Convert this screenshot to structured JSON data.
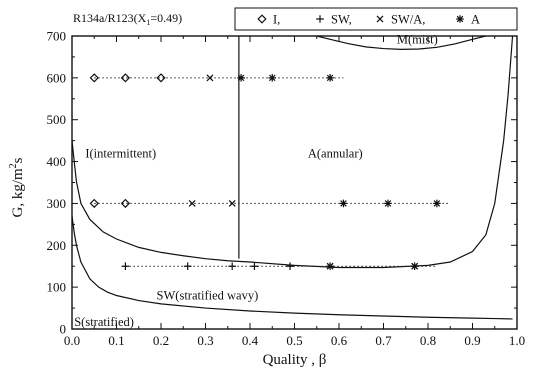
{
  "chart_data": {
    "type": "scatter",
    "header": "R134a/R123(X₁=0.49)",
    "xlabel": "Quality , β",
    "ylabel": "G, kg/m²s",
    "xlim": [
      0.0,
      1.0
    ],
    "ylim": [
      0,
      700
    ],
    "x_ticks": [
      "0.0",
      "0.1",
      "0.2",
      "0.3",
      "0.4",
      "0.5",
      "0.6",
      "0.7",
      "0.8",
      "0.9",
      "1.0"
    ],
    "y_ticks": [
      "0",
      "100",
      "200",
      "300",
      "400",
      "500",
      "600",
      "700"
    ],
    "grid": false,
    "legend_position": "top",
    "series": [
      {
        "name": "I,",
        "marker": "diamond",
        "x": [
          0.05,
          0.12,
          0.2,
          0.05,
          0.12
        ],
        "y": [
          600,
          600,
          600,
          300,
          300
        ]
      },
      {
        "name": "SW,",
        "marker": "plus",
        "x": [
          0.12,
          0.26,
          0.36,
          0.41,
          0.49
        ],
        "y": [
          150,
          150,
          150,
          150,
          150
        ]
      },
      {
        "name": "SW/A,",
        "marker": "cross",
        "x": [
          0.31,
          0.27,
          0.36,
          0.58,
          0.77
        ],
        "y": [
          600,
          300,
          300,
          150,
          150
        ]
      },
      {
        "name": "A",
        "marker": "asterisk",
        "x": [
          0.38,
          0.45,
          0.58,
          0.61,
          0.71,
          0.82,
          0.58,
          0.77
        ],
        "y": [
          600,
          600,
          600,
          300,
          300,
          300,
          150,
          150
        ]
      }
    ],
    "guide_lines": [
      {
        "y": 600,
        "x": [
          0.05,
          0.61
        ]
      },
      {
        "y": 300,
        "x": [
          0.05,
          0.85
        ]
      },
      {
        "y": 150,
        "x": [
          0.12,
          0.82
        ]
      }
    ],
    "boundaries": {
      "intermittent_annular": {
        "x": [
          0.375,
          0.375
        ],
        "y": [
          168,
          700
        ]
      },
      "stratified_wavy_upper": {
        "x": [
          0.0,
          0.005,
          0.01,
          0.02,
          0.04,
          0.07,
          0.1,
          0.15,
          0.2,
          0.25,
          0.3,
          0.35,
          0.4,
          0.5,
          0.6,
          0.7,
          0.8,
          0.85,
          0.9,
          0.93,
          0.95,
          0.97,
          0.98,
          0.99
        ],
        "y": [
          450,
          400,
          352,
          300,
          262,
          232,
          215,
          195,
          183,
          175,
          168,
          163,
          160,
          152,
          147,
          147,
          152,
          160,
          185,
          225,
          300,
          450,
          560,
          700
        ]
      },
      "stratified": {
        "x": [
          0.0,
          0.005,
          0.01,
          0.02,
          0.04,
          0.06,
          0.08,
          0.1,
          0.15,
          0.2,
          0.3,
          0.4,
          0.5,
          0.6,
          0.7,
          0.8,
          0.9,
          0.95,
          0.99
        ],
        "y": [
          270,
          230,
          200,
          160,
          120,
          100,
          88,
          80,
          68,
          60,
          50,
          43,
          38,
          34,
          31,
          28,
          26,
          25,
          24
        ]
      },
      "mist": {
        "x": [
          0.55,
          0.58,
          0.62,
          0.66,
          0.7,
          0.74,
          0.78,
          0.82,
          0.86,
          0.9,
          0.93
        ],
        "y": [
          700,
          692,
          682,
          674,
          670,
          668,
          669,
          673,
          681,
          692,
          700
        ]
      }
    },
    "region_labels": [
      {
        "text": "I(intermittent)",
        "x": 0.03,
        "y": 410
      },
      {
        "text": "A(annular)",
        "x": 0.53,
        "y": 410
      },
      {
        "text": "SW(stratified wavy)",
        "x": 0.19,
        "y": 70
      },
      {
        "text": "S(stratified)",
        "x": 0.005,
        "y": 7
      },
      {
        "text": "M(mist)",
        "x": 0.73,
        "y": 682
      }
    ]
  }
}
